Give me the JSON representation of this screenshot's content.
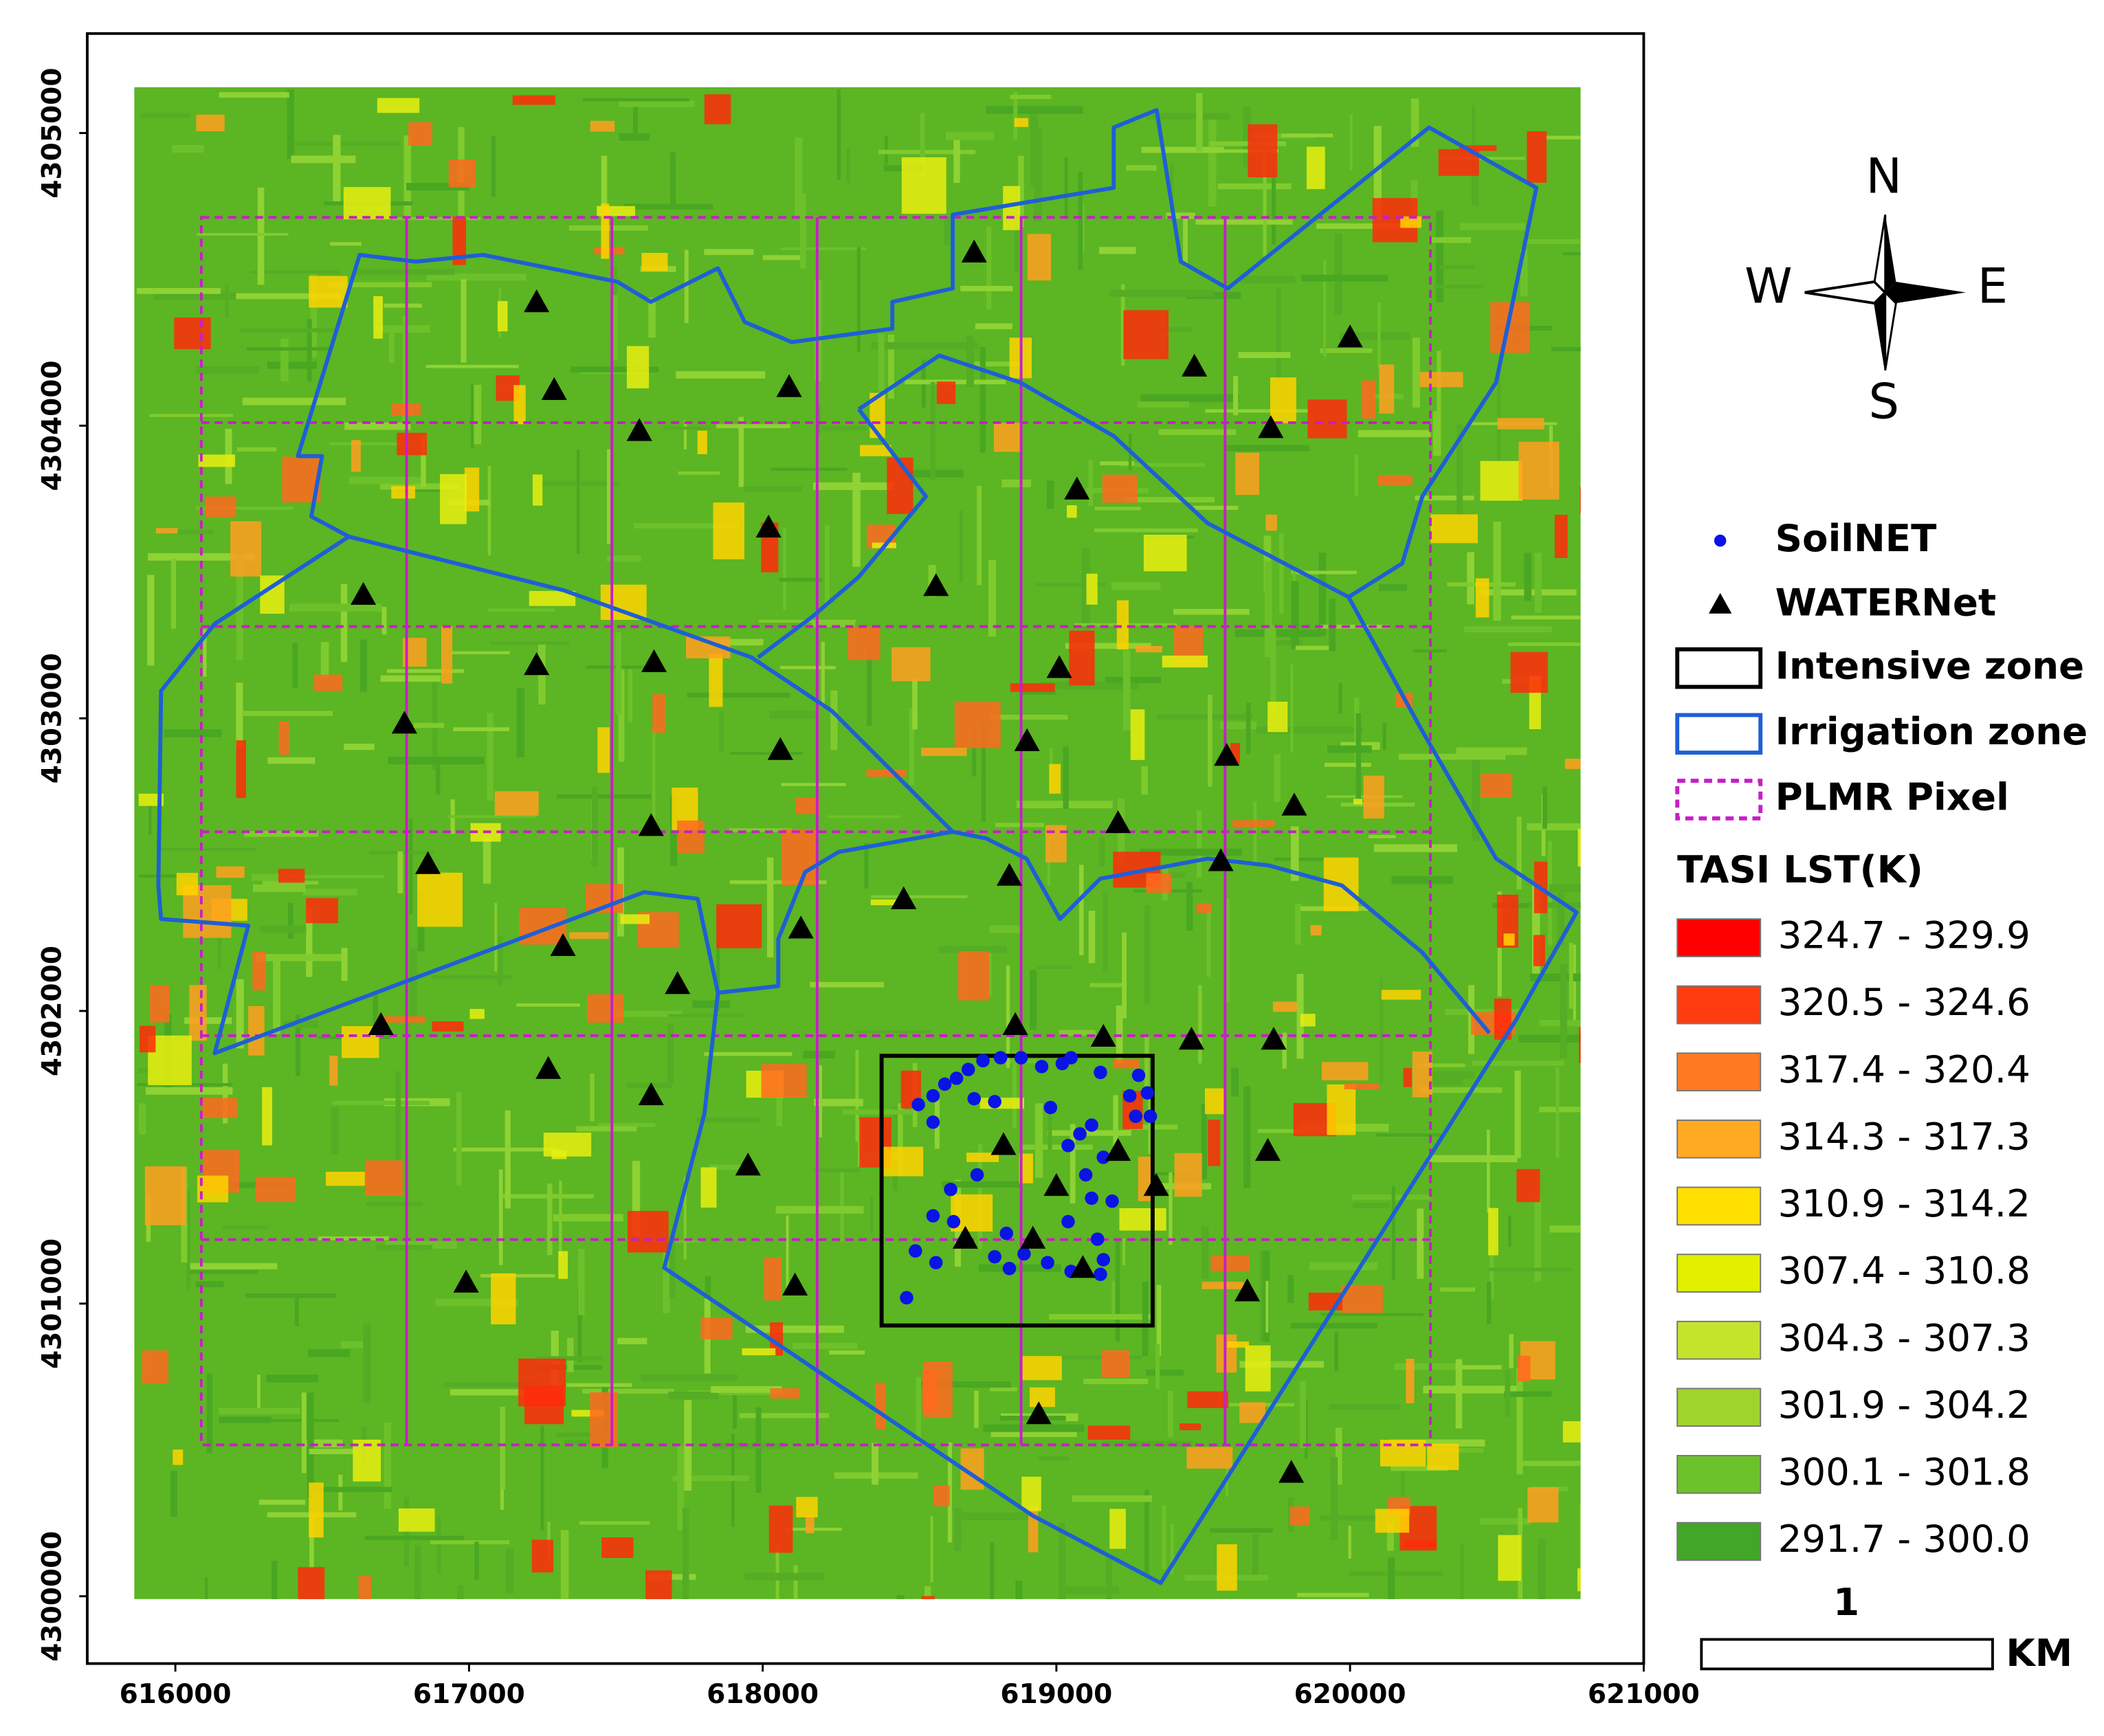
{
  "chart_data": {
    "type": "map",
    "xlim": [
      615700,
      621000
    ],
    "ylim": [
      4299770,
      4305340
    ],
    "xticks": [
      616000,
      617000,
      618000,
      619000,
      620000,
      621000
    ],
    "yticks": [
      4300000,
      4301000,
      4302000,
      4303000,
      4304000,
      4305000
    ],
    "series": [
      {
        "name": "SoilNET",
        "color": "#0a14e6",
        "marker": "circle",
        "x": [
          618490,
          618530,
          618580,
          618620,
          618660,
          618700,
          618750,
          618810,
          618880,
          618950,
          619020,
          619050,
          619150,
          619280,
          619310,
          619250,
          619270,
          619320,
          618580,
          618720,
          618790,
          618980,
          619120,
          619040,
          619080,
          619160,
          619100,
          619190,
          619120,
          618640,
          618730,
          618580,
          618650,
          618520,
          618590,
          618790,
          618840,
          618890,
          618970,
          619050,
          619150,
          619160,
          619140,
          619040,
          618830
        ],
        "y": [
          4301020,
          4301680,
          4301710,
          4301750,
          4301770,
          4301800,
          4301830,
          4301840,
          4301840,
          4301810,
          4301820,
          4301840,
          4301790,
          4301780,
          4301720,
          4301710,
          4301640,
          4301640,
          4301620,
          4301700,
          4301690,
          4301670,
          4301610,
          4301540,
          4301580,
          4301500,
          4301440,
          4301350,
          4301360,
          4301390,
          4301440,
          4301300,
          4301280,
          4301180,
          4301140,
          4301160,
          4301120,
          4301170,
          4301140,
          4301110,
          4301100,
          4301150,
          4301220,
          4301280,
          4301240
        ]
      },
      {
        "name": "WATERNet",
        "color": "#000000",
        "marker": "triangle",
        "x": [
          617230,
          617290,
          618090,
          617580,
          618720,
          619470,
          620000,
          619730,
          619070,
          618020,
          618590,
          616640,
          617230,
          617630,
          619010,
          616780,
          618060,
          618900,
          619580,
          619810,
          617620,
          619210,
          616860,
          619560,
          618840,
          618480,
          618130,
          617320,
          617710,
          616700,
          618860,
          619160,
          619460,
          619740,
          617270,
          617620,
          618820,
          619210,
          619720,
          617950,
          619000,
          619340,
          618690,
          618920,
          619090,
          616990,
          618110,
          619650,
          618940,
          619800
        ],
        "y": [
          4304420,
          4304120,
          4304130,
          4303980,
          4304590,
          4304200,
          4304300,
          4303990,
          4303780,
          4303650,
          4303450,
          4303420,
          4303180,
          4303190,
          4303170,
          4302980,
          4302890,
          4302920,
          4302870,
          4302700,
          4302630,
          4302640,
          4302500,
          4302510,
          4302460,
          4302380,
          4302280,
          4302220,
          4302090,
          4301950,
          4301950,
          4301910,
          4301900,
          4301900,
          4301800,
          4301710,
          4301540,
          4301520,
          4301520,
          4301470,
          4301400,
          4301400,
          4301220,
          4301220,
          4301120,
          4301070,
          4301060,
          4301040,
          4300620,
          4300420
        ]
      }
    ],
    "zones": [
      {
        "name": "Intensive zone",
        "color": "#000000",
        "style": "solid"
      },
      {
        "name": "Irrigation zone",
        "color": "#1f5fd6",
        "style": "solid"
      },
      {
        "name": "PLMR Pixel",
        "color": "#c81ec8",
        "style": "dashed"
      }
    ],
    "color_legend": {
      "title": "TASI LST(K)",
      "classes": [
        {
          "label": "324.7 - 329.9",
          "color": "#ff0000"
        },
        {
          "label": "320.5 - 324.6",
          "color": "#ff3c10"
        },
        {
          "label": "317.4 - 320.4",
          "color": "#ff7a22"
        },
        {
          "label": "314.3 - 317.3",
          "color": "#ffaa22"
        },
        {
          "label": "310.9 - 314.2",
          "color": "#ffe000"
        },
        {
          "label": "307.4 - 310.8",
          "color": "#e2f000"
        },
        {
          "label": "304.3 - 307.3",
          "color": "#c4e42c"
        },
        {
          "label": "301.9 - 304.2",
          "color": "#9fd42c"
        },
        {
          "label": "300.1 - 301.8",
          "color": "#6cc22a"
        },
        {
          "label": "291.7 - 300.0",
          "color": "#42a628"
        }
      ]
    },
    "scale_bar": {
      "label": "1",
      "unit": "KM"
    },
    "north_arrow": {
      "n": "N",
      "s": "S",
      "w": "W",
      "e": "E"
    }
  }
}
